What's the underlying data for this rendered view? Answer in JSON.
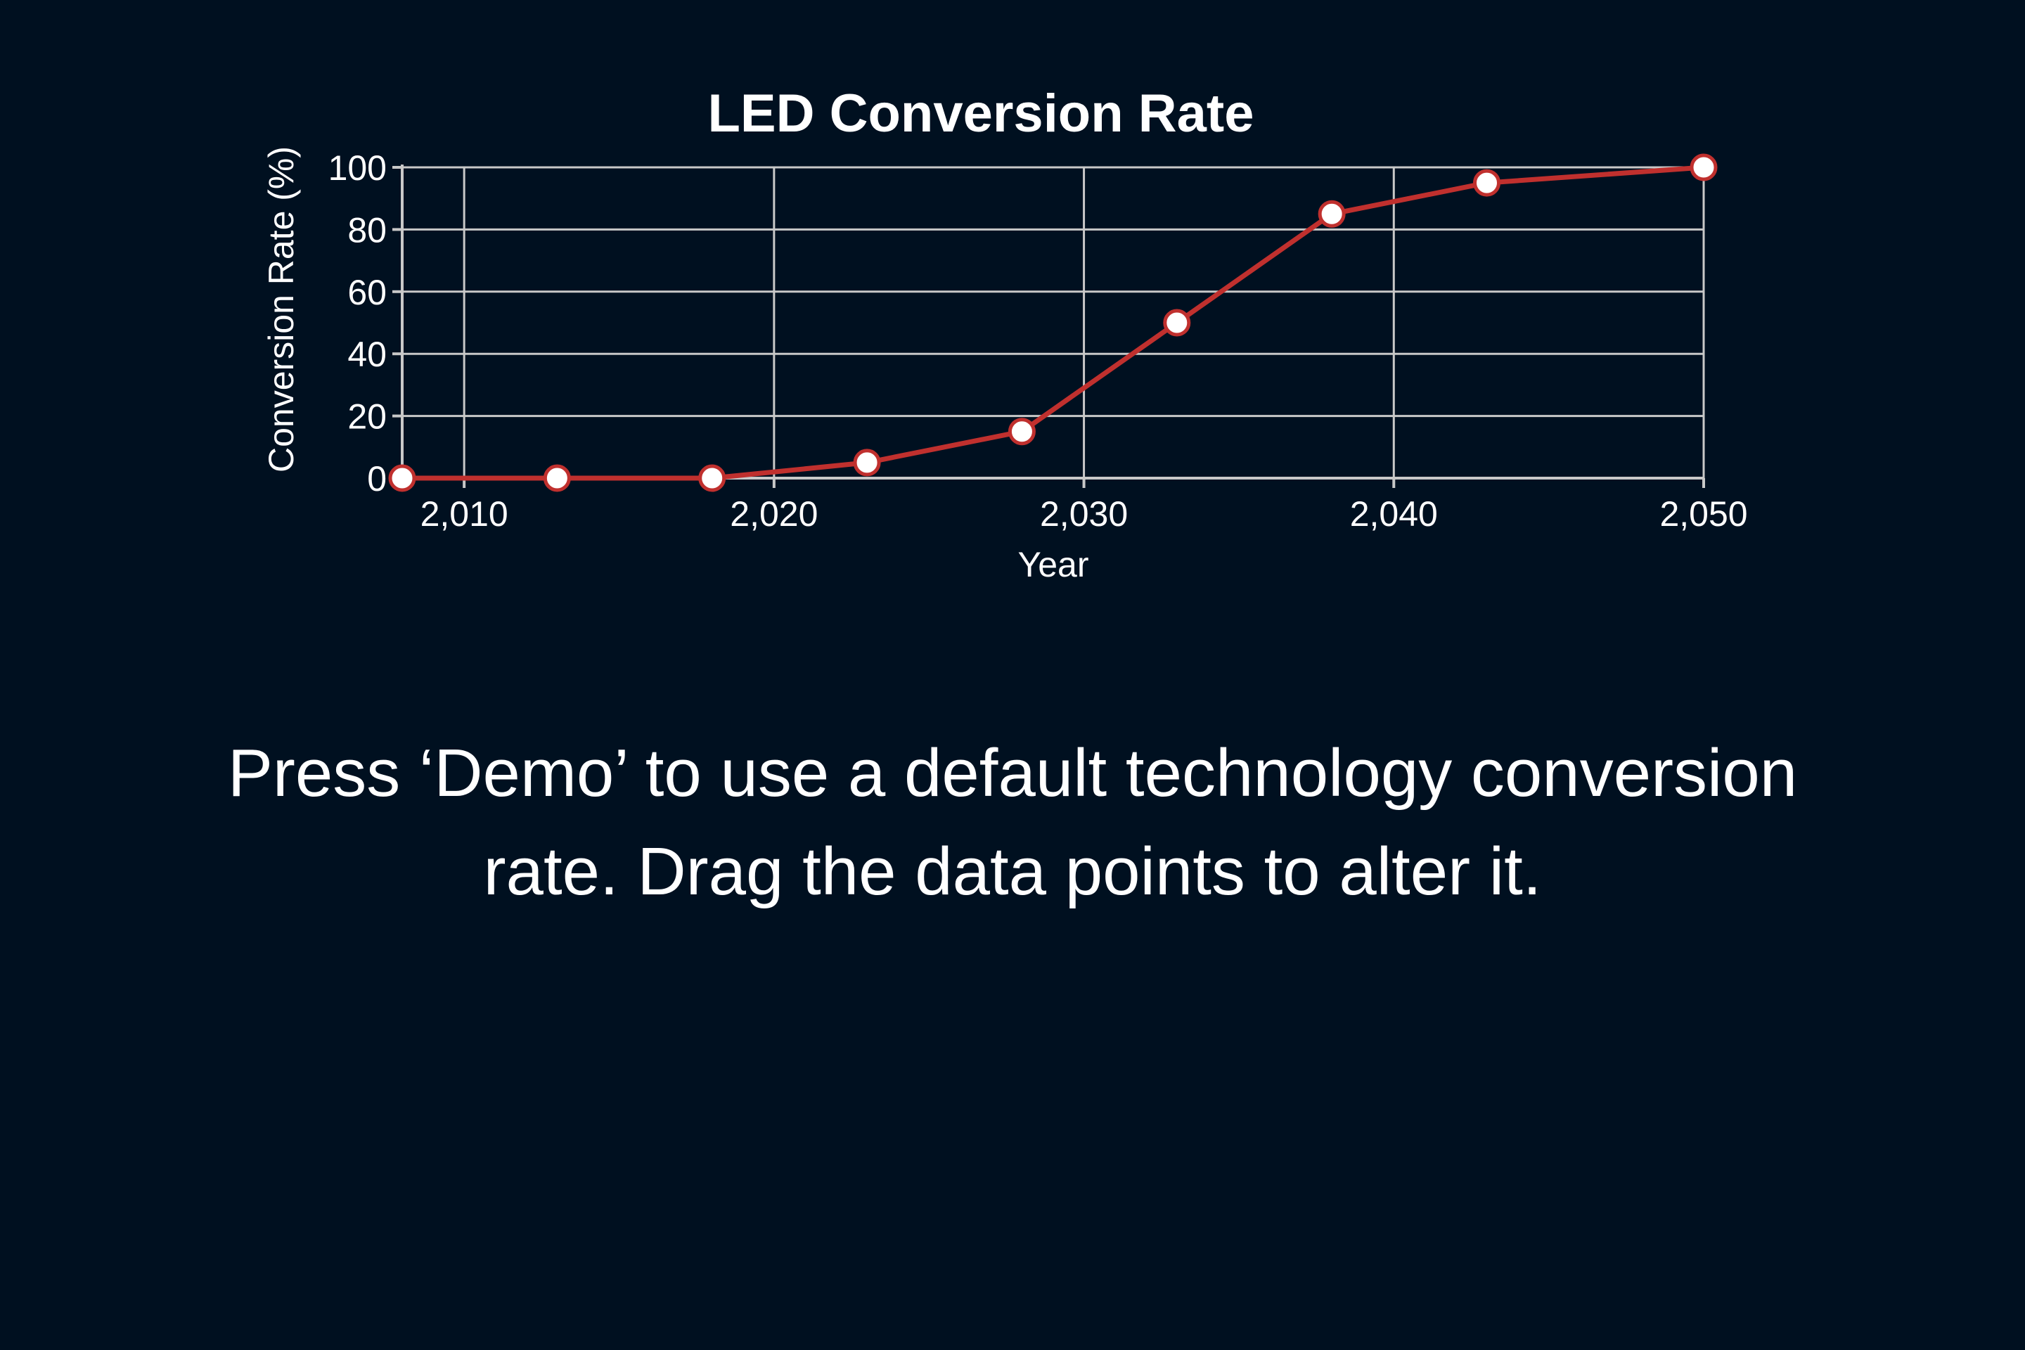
{
  "chart_data": {
    "type": "line",
    "title": "LED Conversion Rate",
    "xlabel": "Year",
    "ylabel": "Conversion Rate (%)",
    "xlim": [
      2008,
      2050
    ],
    "ylim": [
      0,
      100
    ],
    "x_ticks": [
      {
        "value": 2010,
        "label": "2,010"
      },
      {
        "value": 2020,
        "label": "2,020"
      },
      {
        "value": 2030,
        "label": "2,030"
      },
      {
        "value": 2040,
        "label": "2,040"
      },
      {
        "value": 2050,
        "label": "2,050"
      }
    ],
    "y_ticks": [
      {
        "value": 0,
        "label": "0"
      },
      {
        "value": 20,
        "label": "20"
      },
      {
        "value": 40,
        "label": "40"
      },
      {
        "value": 60,
        "label": "60"
      },
      {
        "value": 80,
        "label": "80"
      },
      {
        "value": 100,
        "label": "100"
      }
    ],
    "grid": true,
    "series": [
      {
        "color": "#c0302e",
        "points": [
          {
            "x": 2008,
            "y": 0
          },
          {
            "x": 2013,
            "y": 0
          },
          {
            "x": 2018,
            "y": 0
          },
          {
            "x": 2023,
            "y": 5
          },
          {
            "x": 2028,
            "y": 15
          },
          {
            "x": 2033,
            "y": 50
          },
          {
            "x": 2038,
            "y": 85
          },
          {
            "x": 2043,
            "y": 95
          },
          {
            "x": 2050,
            "y": 100
          }
        ]
      }
    ]
  },
  "instructions": {
    "text": "Press ‘Demo’ to use a default technology conversion rate. Drag the data points to alter it."
  },
  "colors": {
    "background": "#001020",
    "series": "#c0302e",
    "grid": "#c8c8c8",
    "text": "#ffffff"
  }
}
